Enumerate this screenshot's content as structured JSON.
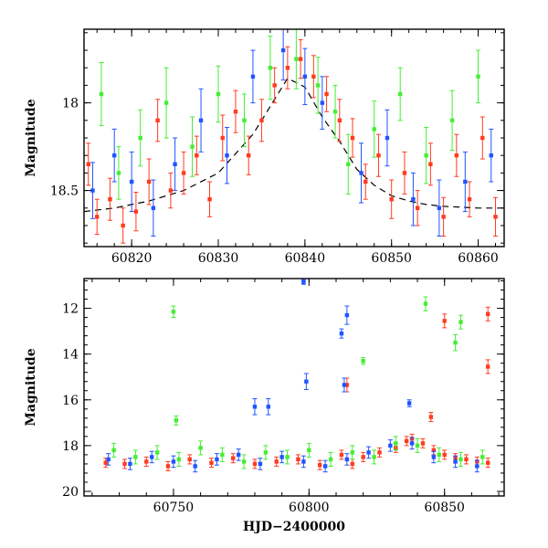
{
  "chart_data": [
    {
      "type": "scatter",
      "title": "",
      "xlabel": "",
      "ylabel": "Magnitude",
      "xlim": [
        60814.5,
        60863
      ],
      "ylim": [
        18.82,
        17.58
      ],
      "y_inverted": true,
      "x_ticks": [
        60820,
        60830,
        60840,
        60850,
        60860
      ],
      "x_tick_labels": [
        "60820",
        "60830",
        "60840",
        "60850",
        "60860"
      ],
      "y_ticks": [
        18,
        18.5
      ],
      "y_tick_labels": [
        "18",
        "18.5"
      ],
      "grid": false,
      "legend": "none",
      "model_curve": {
        "style": "dashed",
        "color": "#000000",
        "x": [
          60814.5,
          60818,
          60822,
          60826,
          60830,
          60834,
          60836,
          60838,
          60840,
          60842,
          60844,
          60846,
          60848,
          60850,
          60852,
          60854,
          60856,
          60860,
          60863
        ],
        "y": [
          18.62,
          18.6,
          18.56,
          18.5,
          18.4,
          18.18,
          18.02,
          17.86,
          17.91,
          18.08,
          18.22,
          18.38,
          18.47,
          18.53,
          18.56,
          18.58,
          18.59,
          18.6,
          18.6
        ]
      },
      "series": [
        {
          "color": "#ff3b1f",
          "x": [
            60815.0,
            60816.0,
            60817.5,
            60819.0,
            60820.5,
            60822.0,
            60823.0,
            60824.5,
            60826.0,
            60827.5,
            60829.0,
            60830.5,
            60832.0,
            60833.5,
            60835.0,
            60836.5,
            60838.0,
            60839.5,
            60841.0,
            60842.5,
            60844.0,
            60845.5,
            60847.0,
            60848.5,
            60850.0,
            60851.5,
            60853.0,
            60854.5,
            60856.0,
            60857.5,
            60859.0,
            60860.5,
            60862.0
          ],
          "y": [
            18.35,
            18.65,
            18.55,
            18.7,
            18.62,
            18.45,
            18.1,
            18.5,
            18.4,
            18.3,
            18.55,
            18.2,
            18.05,
            18.3,
            18.1,
            17.9,
            17.8,
            17.75,
            17.85,
            17.95,
            18.1,
            18.2,
            18.45,
            18.3,
            18.55,
            18.4,
            18.6,
            18.35,
            18.65,
            18.3,
            18.55,
            18.2,
            18.65
          ],
          "err": [
            0.12,
            0.1,
            0.12,
            0.1,
            0.11,
            0.13,
            0.12,
            0.1,
            0.12,
            0.11,
            0.1,
            0.13,
            0.12,
            0.11,
            0.12,
            0.1,
            0.12,
            0.11,
            0.12,
            0.1,
            0.12,
            0.11,
            0.1,
            0.12,
            0.11,
            0.12,
            0.1,
            0.12,
            0.11,
            0.12,
            0.1,
            0.12,
            0.11
          ]
        },
        {
          "color": "#44ee33",
          "x": [
            60816.5,
            60818.5,
            60821.0,
            60824.0,
            60827.0,
            60830.0,
            60833.0,
            60836.0,
            60839.0,
            60841.5,
            60843.5,
            60845.0,
            60848.0,
            60851.0,
            60854.0,
            60857.0,
            60860.0
          ],
          "y": [
            17.95,
            18.4,
            18.2,
            18.0,
            18.25,
            17.95,
            18.1,
            17.8,
            17.75,
            17.9,
            18.05,
            18.35,
            18.15,
            17.95,
            18.3,
            18.1,
            17.85
          ],
          "err": [
            0.18,
            0.15,
            0.16,
            0.2,
            0.17,
            0.16,
            0.15,
            0.18,
            0.17,
            0.16,
            0.15,
            0.17,
            0.16,
            0.15,
            0.16,
            0.17,
            0.15
          ]
        },
        {
          "color": "#1f55ff",
          "x": [
            60815.5,
            60818.0,
            60820.0,
            60822.5,
            60825.0,
            60828.0,
            60831.0,
            60834.0,
            60837.5,
            60840.0,
            60842.0,
            60846.5,
            60849.5,
            60852.5,
            60855.5,
            60858.5,
            60861.5
          ],
          "y": [
            18.5,
            18.3,
            18.45,
            18.6,
            18.35,
            18.1,
            18.3,
            17.85,
            17.7,
            17.85,
            18.0,
            18.4,
            18.2,
            18.55,
            18.6,
            18.45,
            18.3
          ],
          "err": [
            0.16,
            0.15,
            0.17,
            0.16,
            0.15,
            0.18,
            0.16,
            0.15,
            0.17,
            0.16,
            0.15,
            0.17,
            0.16,
            0.15,
            0.16,
            0.17,
            0.15
          ]
        }
      ]
    },
    {
      "type": "scatter",
      "title": "",
      "xlabel": "HJD−2400000",
      "ylabel": "Magnitude",
      "xlim": [
        60717,
        60872
      ],
      "ylim": [
        20.2,
        10.7
      ],
      "y_inverted": true,
      "x_ticks": [
        60750,
        60800,
        60850
      ],
      "x_tick_labels": [
        "60750",
        "60800",
        "60850"
      ],
      "y_ticks": [
        12,
        14,
        16,
        18,
        20
      ],
      "y_tick_labels": [
        "12",
        "14",
        "16",
        "18",
        "20"
      ],
      "grid": false,
      "legend": "none",
      "series": [
        {
          "color": "#ff3b1f",
          "x": [
            60725,
            60732,
            60740,
            60748,
            60756,
            60764,
            60772,
            60780,
            60788,
            60796,
            60804,
            60812,
            60816,
            60820,
            60826,
            60832,
            60836,
            60838,
            60842,
            60846,
            60850,
            60854,
            60858,
            60862,
            60866,
            60814,
            60845,
            60850,
            60866,
            60866
          ],
          "y": [
            18.75,
            18.8,
            18.7,
            18.9,
            18.6,
            18.75,
            18.55,
            18.8,
            18.7,
            18.6,
            18.85,
            18.4,
            18.8,
            18.5,
            18.3,
            18.1,
            17.8,
            17.7,
            17.9,
            18.2,
            18.4,
            18.55,
            18.6,
            18.7,
            18.75,
            15.35,
            16.75,
            12.55,
            12.25,
            14.55
          ],
          "err": [
            0.2,
            0.2,
            0.2,
            0.2,
            0.2,
            0.2,
            0.2,
            0.2,
            0.2,
            0.2,
            0.2,
            0.2,
            0.2,
            0.2,
            0.2,
            0.2,
            0.2,
            0.2,
            0.2,
            0.2,
            0.2,
            0.2,
            0.2,
            0.2,
            0.2,
            0.3,
            0.2,
            0.3,
            0.3,
            0.3
          ]
        },
        {
          "color": "#44ee33",
          "x": [
            60728,
            60736,
            60744,
            60752,
            60760,
            60768,
            60776,
            60784,
            60792,
            60800,
            60808,
            60816,
            60824,
            60832,
            60840,
            60848,
            60856,
            60864,
            60750,
            60751,
            60820,
            60843,
            60854,
            60856
          ],
          "y": [
            18.2,
            18.5,
            18.3,
            18.6,
            18.1,
            18.4,
            18.7,
            18.3,
            18.5,
            18.2,
            18.6,
            18.3,
            18.5,
            17.9,
            18.0,
            18.4,
            18.6,
            18.5,
            12.15,
            16.9,
            14.3,
            11.8,
            13.5,
            12.6
          ],
          "err": [
            0.3,
            0.3,
            0.3,
            0.3,
            0.3,
            0.3,
            0.3,
            0.3,
            0.3,
            0.3,
            0.3,
            0.3,
            0.3,
            0.3,
            0.3,
            0.3,
            0.3,
            0.3,
            0.25,
            0.2,
            0.15,
            0.3,
            0.35,
            0.3
          ]
        },
        {
          "color": "#1f55ff",
          "x": [
            60726,
            60734,
            60742,
            60750,
            60758,
            60766,
            60774,
            60782,
            60790,
            60798,
            60806,
            60814,
            60822,
            60830,
            60838,
            60846,
            60854,
            60862,
            60798,
            60799,
            60812,
            60813,
            60814,
            60780,
            60785,
            60837
          ],
          "y": [
            18.6,
            18.8,
            18.5,
            18.7,
            18.9,
            18.6,
            18.4,
            18.8,
            18.5,
            18.7,
            18.9,
            18.6,
            18.3,
            18.0,
            17.9,
            18.5,
            18.7,
            18.9,
            10.85,
            15.2,
            13.1,
            15.35,
            12.3,
            16.3,
            16.3,
            16.15
          ],
          "err": [
            0.25,
            0.25,
            0.25,
            0.25,
            0.25,
            0.25,
            0.25,
            0.25,
            0.25,
            0.25,
            0.25,
            0.25,
            0.25,
            0.25,
            0.25,
            0.25,
            0.25,
            0.25,
            0.1,
            0.35,
            0.2,
            0.3,
            0.4,
            0.35,
            0.35,
            0.15
          ]
        }
      ]
    }
  ]
}
